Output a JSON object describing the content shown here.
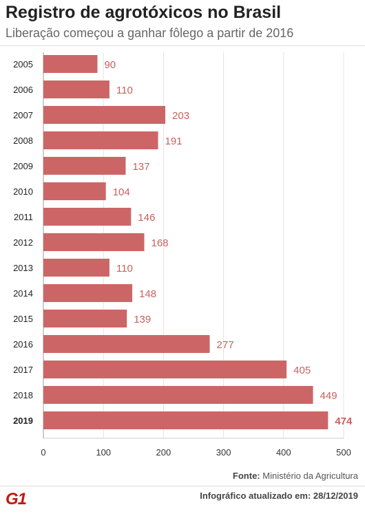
{
  "header": {
    "title": "Registro de agrotóxicos no Brasil",
    "subtitle": "Liberação começou a ganhar fôlego a partir de 2016"
  },
  "footer": {
    "source_label": "Fonte:",
    "source_value": "Ministério da Agricultura",
    "logo": "G1",
    "updated_label": "Infográfico atualizado em:",
    "updated_value": "28/12/2019"
  },
  "colors": {
    "bar": "#cc6666",
    "label": "#c9605e",
    "brand": "#c4170c"
  },
  "chart_data": {
    "type": "bar",
    "orientation": "horizontal",
    "title": "Registro de agrotóxicos no Brasil",
    "subtitle": "Liberação começou a ganhar fôlego a partir de 2016",
    "categories": [
      "2005",
      "2006",
      "2007",
      "2008",
      "2009",
      "2010",
      "2011",
      "2012",
      "2013",
      "2014",
      "2015",
      "2016",
      "2017",
      "2018",
      "2019"
    ],
    "values": [
      90,
      110,
      203,
      191,
      137,
      104,
      146,
      168,
      110,
      148,
      139,
      277,
      405,
      449,
      474
    ],
    "highlight": "2019",
    "xlim": [
      0,
      500
    ],
    "xticks": [
      0,
      100,
      200,
      300,
      400,
      500
    ],
    "grid": true
  }
}
